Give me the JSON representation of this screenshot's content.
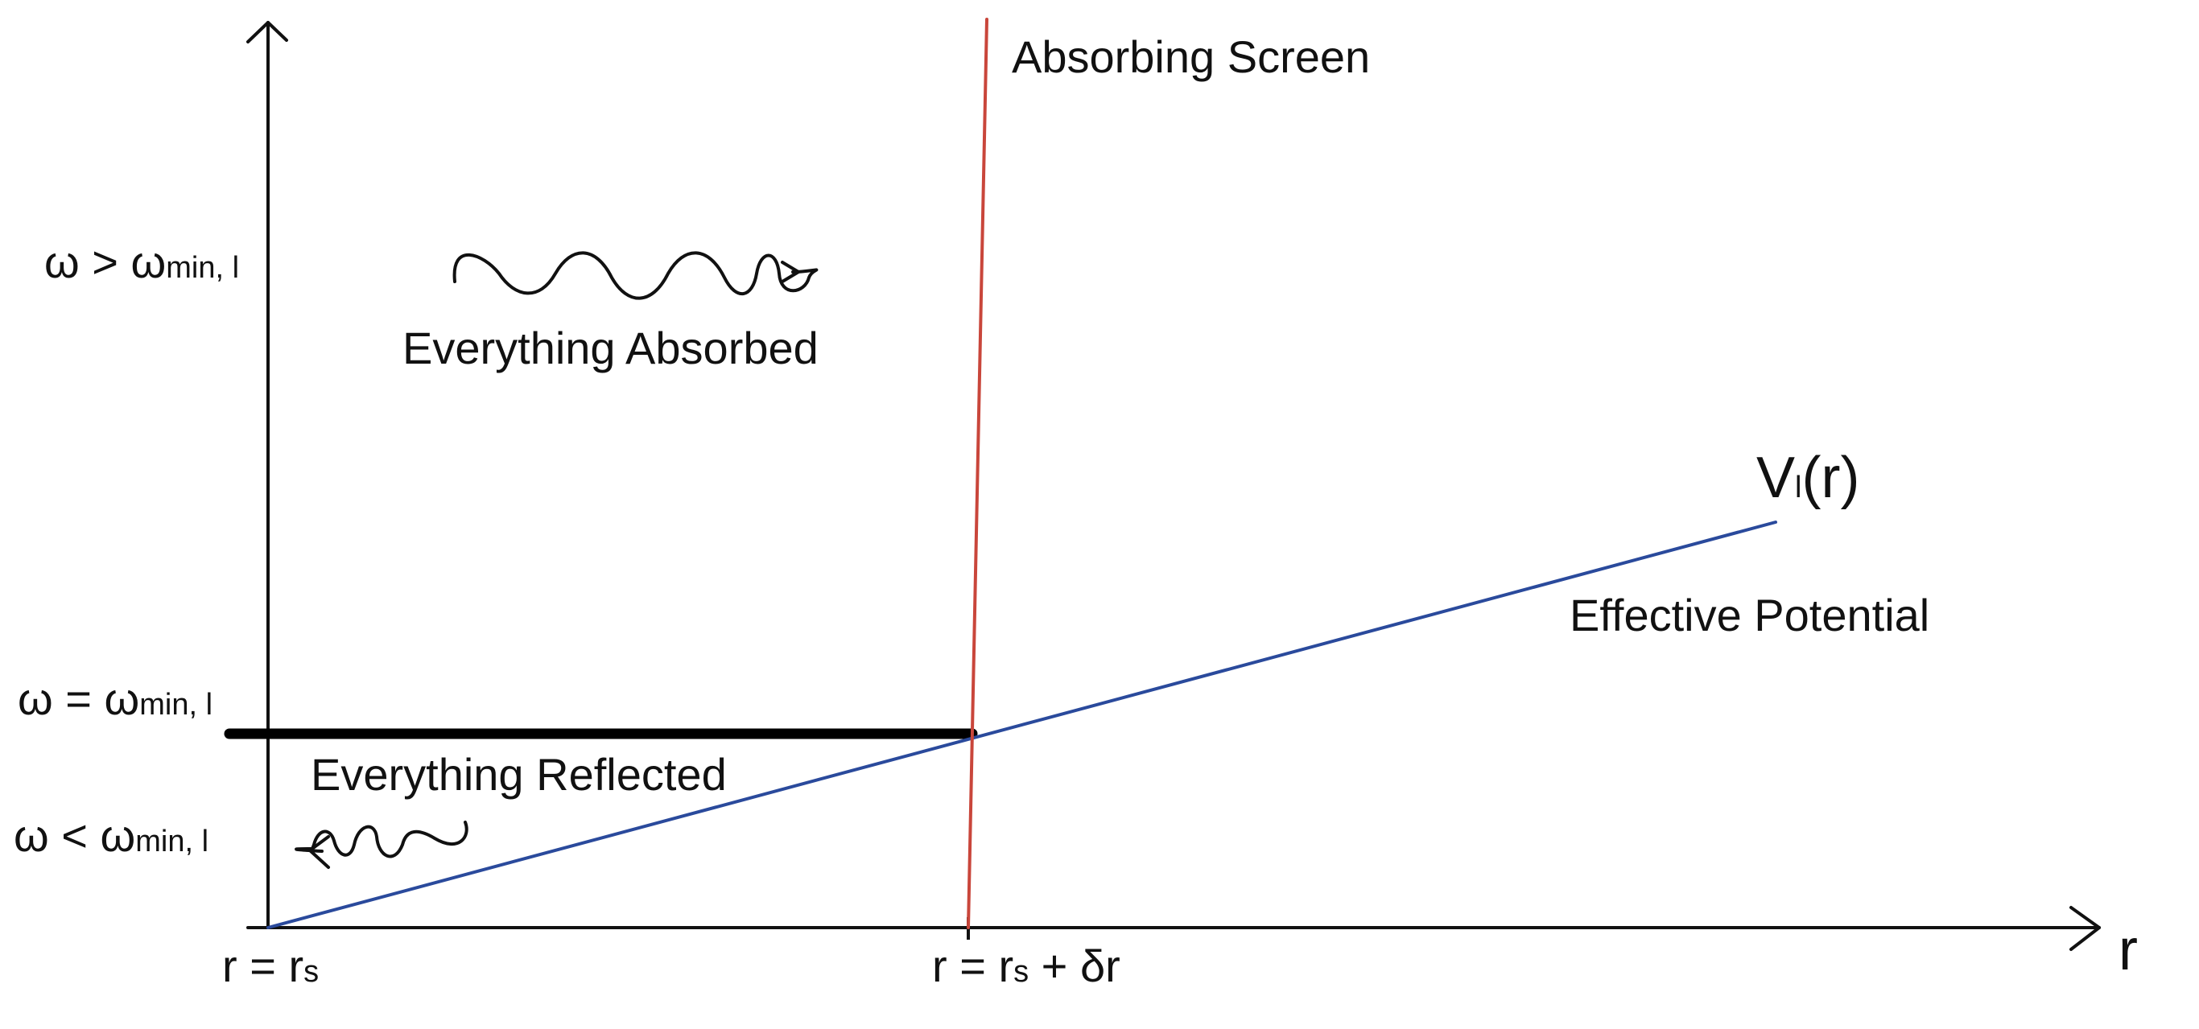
{
  "labels": {
    "y_high": {
      "main": "ω > ω",
      "sub": "min, l"
    },
    "y_equal": {
      "main": "ω = ω",
      "sub": "min, l"
    },
    "y_low": {
      "main": "ω < ω",
      "sub": "min, l"
    },
    "absorbing_screen": "Absorbing Screen",
    "everything_absorbed": "Everything Absorbed",
    "everything_reflected": "Everything Reflected",
    "potential": {
      "main": "V",
      "sub": "l",
      "rest": "(r)"
    },
    "effective_potential": "Effective Potential",
    "x_axis": "r",
    "x_origin": {
      "main": "r = r",
      "sub": "s"
    },
    "x_screen": {
      "main": "r = r",
      "sub": "s",
      "rest": " + δr"
    }
  },
  "colors": {
    "axes": "#111111",
    "screen": "#c9463b",
    "potential": "#2a4a9c",
    "threshold": "#000000"
  }
}
